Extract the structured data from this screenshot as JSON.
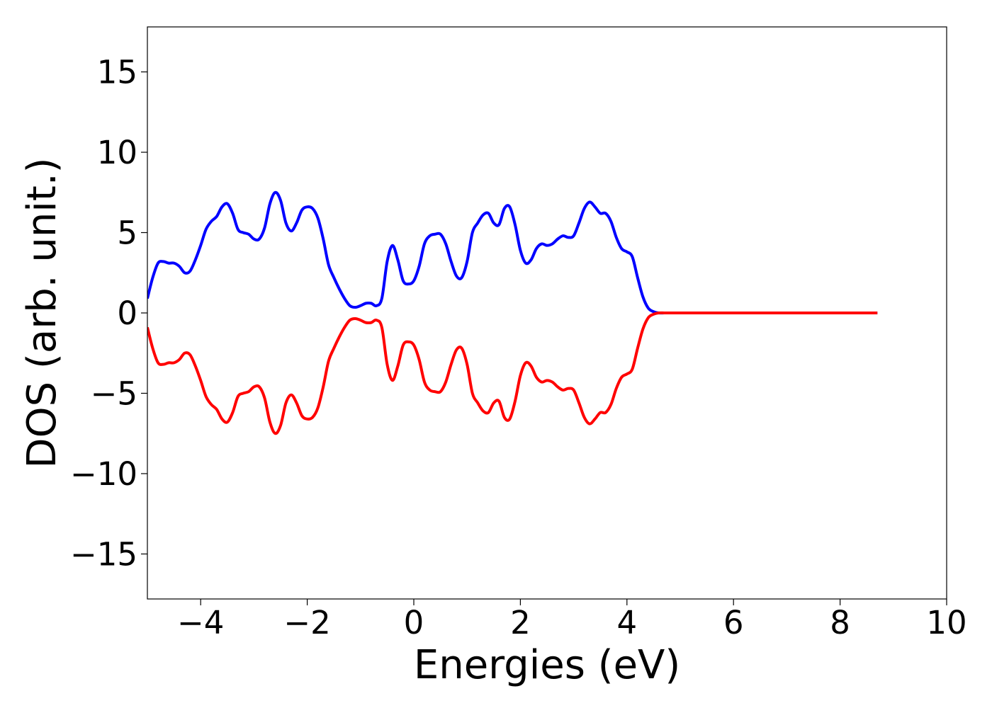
{
  "chart_data": {
    "type": "line",
    "title": "",
    "xlabel": "Energies (eV)",
    "ylabel": "DOS (arb. unit.)",
    "xlim": [
      -5,
      10
    ],
    "ylim": [
      -17.8,
      17.8
    ],
    "xticks": [
      -4,
      -2,
      0,
      2,
      4,
      6,
      8,
      10
    ],
    "xtick_labels": [
      "−4",
      "−2",
      "0",
      "2",
      "4",
      "6",
      "8",
      "10"
    ],
    "yticks": [
      15,
      10,
      5,
      0,
      -5,
      -10,
      -15
    ],
    "ytick_labels": [
      "15",
      "10",
      "5",
      "0",
      "−5",
      "−10",
      "−15"
    ],
    "grid": false,
    "legend": "none",
    "series": [
      {
        "color": "#0000ff",
        "x": [
          -5.0,
          -4.9,
          -4.8,
          -4.7,
          -4.6,
          -4.5,
          -4.4,
          -4.3,
          -4.2,
          -4.1,
          -4.0,
          -3.9,
          -3.8,
          -3.7,
          -3.6,
          -3.5,
          -3.4,
          -3.3,
          -3.2,
          -3.1,
          -3.0,
          -2.9,
          -2.8,
          -2.7,
          -2.6,
          -2.5,
          -2.4,
          -2.3,
          -2.2,
          -2.1,
          -2.0,
          -1.9,
          -1.8,
          -1.7,
          -1.6,
          -1.5,
          -1.4,
          -1.3,
          -1.2,
          -1.1,
          -1.0,
          -0.9,
          -0.8,
          -0.7,
          -0.6,
          -0.5,
          -0.4,
          -0.3,
          -0.2,
          -0.1,
          0.0,
          0.1,
          0.2,
          0.3,
          0.4,
          0.5,
          0.6,
          0.7,
          0.8,
          0.9,
          1.0,
          1.1,
          1.2,
          1.3,
          1.4,
          1.5,
          1.6,
          1.7,
          1.8,
          1.9,
          2.0,
          2.1,
          2.2,
          2.3,
          2.4,
          2.5,
          2.6,
          2.7,
          2.8,
          2.9,
          3.0,
          3.1,
          3.2,
          3.3,
          3.4,
          3.5,
          3.6,
          3.7,
          3.8,
          3.9,
          4.0,
          4.1,
          4.2,
          4.3,
          4.4,
          4.5,
          4.6,
          4.7,
          4.8,
          4.9,
          5.0,
          5.1,
          5.2,
          5.3,
          5.4,
          5.5,
          5.6,
          5.7,
          5.8,
          5.9,
          6.0,
          6.1,
          6.2,
          6.3,
          6.4,
          6.5,
          6.6,
          6.7,
          6.8,
          7.0,
          7.5,
          8.0,
          8.5,
          8.7
        ],
        "y": [
          0.9,
          2.2,
          3.1,
          3.2,
          3.1,
          3.1,
          2.9,
          2.5,
          2.6,
          3.3,
          4.2,
          5.2,
          5.7,
          6.0,
          6.6,
          6.8,
          6.2,
          5.2,
          5.0,
          4.9,
          4.6,
          4.6,
          5.3,
          6.8,
          7.5,
          7.0,
          5.6,
          5.1,
          5.6,
          6.4,
          6.6,
          6.5,
          5.9,
          4.6,
          3.0,
          2.2,
          1.5,
          0.9,
          0.45,
          0.35,
          0.45,
          0.6,
          0.6,
          0.45,
          0.9,
          3.2,
          4.2,
          3.3,
          2.0,
          1.8,
          2.0,
          2.9,
          4.3,
          4.8,
          4.9,
          4.9,
          4.3,
          3.2,
          2.3,
          2.2,
          3.2,
          5.0,
          5.6,
          6.1,
          6.2,
          5.6,
          5.5,
          6.5,
          6.6,
          5.5,
          3.9,
          3.1,
          3.3,
          4.0,
          4.3,
          4.2,
          4.3,
          4.6,
          4.8,
          4.7,
          4.8,
          5.6,
          6.5,
          6.9,
          6.6,
          6.2,
          6.2,
          5.7,
          4.7,
          4.0,
          3.8,
          3.5,
          2.2,
          1.0,
          0.3,
          0.08,
          0.0,
          0.0,
          0.0,
          0.0,
          0.0,
          0.0,
          0.0,
          0.0,
          0.0,
          0.0,
          0.0,
          0.0,
          0.0,
          0.0,
          0.0,
          0.0,
          0.0,
          0.0,
          0.0,
          0.0,
          0.0,
          0.0,
          0.0,
          0.0,
          0.0,
          0.0,
          0.0,
          0.0
        ]
      },
      {
        "color": "#ff0000",
        "x": [
          -5.0,
          -4.9,
          -4.8,
          -4.7,
          -4.6,
          -4.5,
          -4.4,
          -4.3,
          -4.2,
          -4.1,
          -4.0,
          -3.9,
          -3.8,
          -3.7,
          -3.6,
          -3.5,
          -3.4,
          -3.3,
          -3.2,
          -3.1,
          -3.0,
          -2.9,
          -2.8,
          -2.7,
          -2.6,
          -2.5,
          -2.4,
          -2.3,
          -2.2,
          -2.1,
          -2.0,
          -1.9,
          -1.8,
          -1.7,
          -1.6,
          -1.5,
          -1.4,
          -1.3,
          -1.2,
          -1.1,
          -1.0,
          -0.9,
          -0.8,
          -0.7,
          -0.6,
          -0.5,
          -0.4,
          -0.3,
          -0.2,
          -0.1,
          0.0,
          0.1,
          0.2,
          0.3,
          0.4,
          0.5,
          0.6,
          0.7,
          0.8,
          0.9,
          1.0,
          1.1,
          1.2,
          1.3,
          1.4,
          1.5,
          1.6,
          1.7,
          1.8,
          1.9,
          2.0,
          2.1,
          2.2,
          2.3,
          2.4,
          2.5,
          2.6,
          2.7,
          2.8,
          2.9,
          3.0,
          3.1,
          3.2,
          3.3,
          3.4,
          3.5,
          3.6,
          3.7,
          3.8,
          3.9,
          4.0,
          4.1,
          4.2,
          4.3,
          4.4,
          4.5,
          4.6,
          4.7,
          4.8,
          4.9,
          5.0,
          5.1,
          5.2,
          5.3,
          5.4,
          5.5,
          5.6,
          5.7,
          5.8,
          5.9,
          6.0,
          6.1,
          6.2,
          6.3,
          6.4,
          6.5,
          6.6,
          6.7,
          6.8,
          7.0,
          7.5,
          8.0,
          8.5,
          8.7
        ],
        "y": [
          -0.9,
          -2.2,
          -3.1,
          -3.2,
          -3.1,
          -3.1,
          -2.9,
          -2.5,
          -2.6,
          -3.3,
          -4.2,
          -5.2,
          -5.7,
          -6.0,
          -6.6,
          -6.8,
          -6.2,
          -5.2,
          -5.0,
          -4.9,
          -4.6,
          -4.6,
          -5.3,
          -6.8,
          -7.5,
          -7.0,
          -5.6,
          -5.1,
          -5.6,
          -6.4,
          -6.6,
          -6.5,
          -5.9,
          -4.6,
          -3.0,
          -2.2,
          -1.5,
          -0.9,
          -0.45,
          -0.35,
          -0.45,
          -0.6,
          -0.6,
          -0.45,
          -0.9,
          -3.2,
          -4.2,
          -3.3,
          -2.0,
          -1.8,
          -2.0,
          -2.9,
          -4.3,
          -4.8,
          -4.9,
          -4.9,
          -4.3,
          -3.2,
          -2.3,
          -2.2,
          -3.2,
          -5.0,
          -5.6,
          -6.1,
          -6.2,
          -5.6,
          -5.5,
          -6.5,
          -6.6,
          -5.5,
          -3.9,
          -3.1,
          -3.3,
          -4.0,
          -4.3,
          -4.2,
          -4.3,
          -4.6,
          -4.8,
          -4.7,
          -4.8,
          -5.6,
          -6.5,
          -6.9,
          -6.6,
          -6.2,
          -6.2,
          -5.7,
          -4.7,
          -4.0,
          -3.8,
          -3.5,
          -2.2,
          -1.0,
          -0.3,
          -0.08,
          0.0,
          0.0,
          0.0,
          0.0,
          0.0,
          0.0,
          0.0,
          0.0,
          0.0,
          0.0,
          0.0,
          0.0,
          0.0,
          0.0,
          0.0,
          0.0,
          0.0,
          0.0,
          0.0,
          0.0,
          0.0,
          0.0,
          0.0,
          0.0,
          0.0,
          0.0,
          0.0,
          0.0
        ]
      }
    ]
  }
}
